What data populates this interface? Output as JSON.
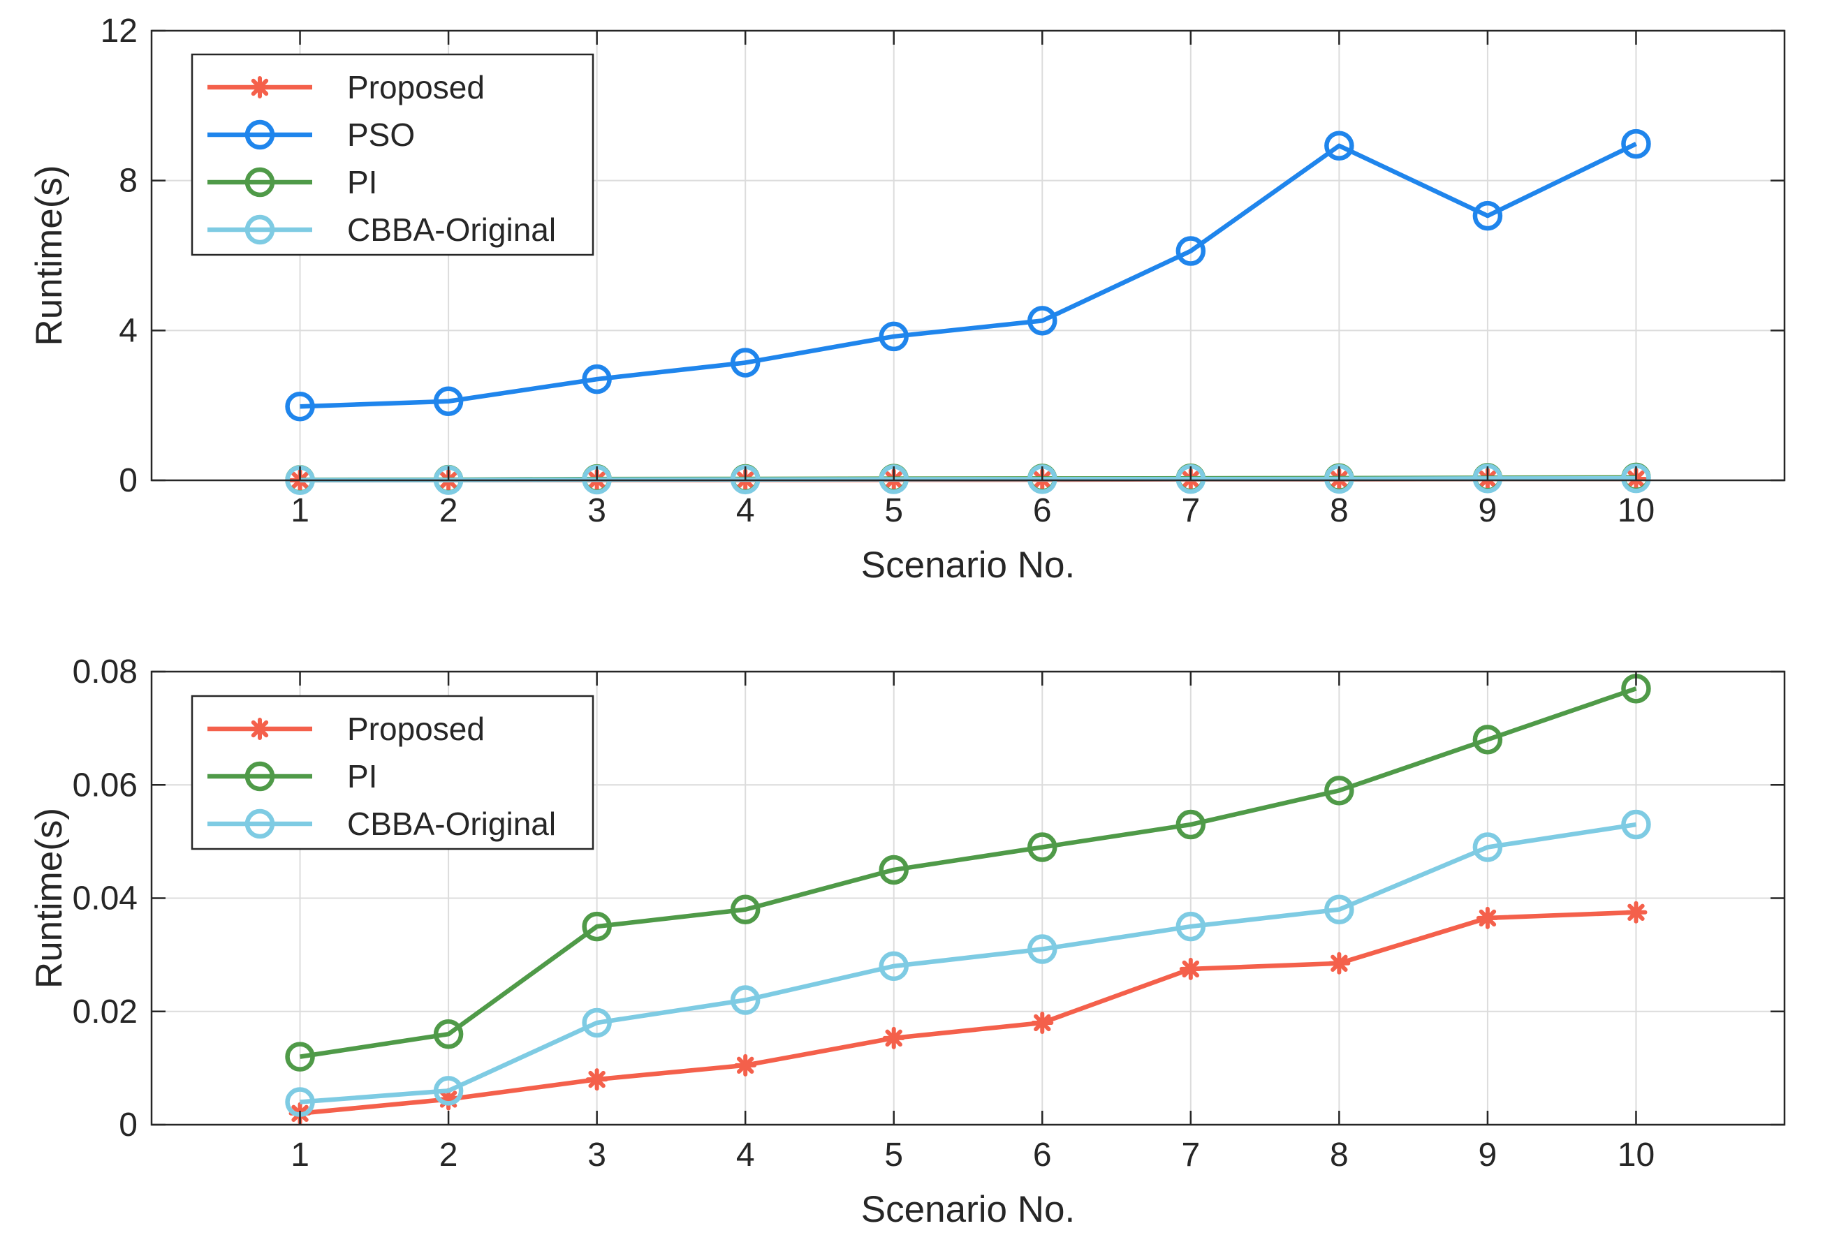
{
  "chart_data": [
    {
      "type": "line",
      "title": "",
      "xlabel": "Scenario No.",
      "ylabel": "Runtime(s)",
      "categories": [
        1,
        2,
        3,
        4,
        5,
        6,
        7,
        8,
        9,
        10
      ],
      "xlim": [
        0,
        11
      ],
      "ylim": [
        0,
        12
      ],
      "xticks": [
        "1",
        "2",
        "3",
        "4",
        "5",
        "6",
        "7",
        "8",
        "9",
        "10"
      ],
      "yticks": [
        "0",
        "4",
        "8",
        "12"
      ],
      "grid": true,
      "legend_position": "top-left",
      "series": [
        {
          "name": "Proposed",
          "color": "#F4604B",
          "marker": "asterisk",
          "values": [
            0.002,
            0.0045,
            0.008,
            0.0105,
            0.0153,
            0.018,
            0.0275,
            0.0285,
            0.0365,
            0.0375
          ]
        },
        {
          "name": "PSO",
          "color": "#1F85EC",
          "marker": "circle",
          "values": [
            1.97,
            2.11,
            2.7,
            3.14,
            3.84,
            4.26,
            6.12,
            8.93,
            7.06,
            8.98
          ]
        },
        {
          "name": "PI",
          "color": "#4F9A48",
          "marker": "circle",
          "values": [
            0.012,
            0.016,
            0.035,
            0.038,
            0.045,
            0.049,
            0.053,
            0.059,
            0.068,
            0.077
          ]
        },
        {
          "name": "CBBA-Original",
          "color": "#7ECBE3",
          "marker": "circle",
          "values": [
            0.004,
            0.006,
            0.018,
            0.022,
            0.028,
            0.031,
            0.035,
            0.038,
            0.049,
            0.053
          ]
        }
      ]
    },
    {
      "type": "line",
      "title": "",
      "xlabel": "Scenario No.",
      "ylabel": "Runtime(s)",
      "categories": [
        1,
        2,
        3,
        4,
        5,
        6,
        7,
        8,
        9,
        10
      ],
      "xlim": [
        0,
        11
      ],
      "ylim": [
        0,
        0.08
      ],
      "xticks": [
        "1",
        "2",
        "3",
        "4",
        "5",
        "6",
        "7",
        "8",
        "9",
        "10"
      ],
      "yticks": [
        "0",
        "0.02",
        "0.04",
        "0.06",
        "0.08"
      ],
      "grid": true,
      "legend_position": "top-left",
      "series": [
        {
          "name": "Proposed",
          "color": "#F4604B",
          "marker": "asterisk",
          "values": [
            0.002,
            0.0045,
            0.008,
            0.0105,
            0.0153,
            0.018,
            0.0275,
            0.0285,
            0.0365,
            0.0375
          ]
        },
        {
          "name": "PI",
          "color": "#4F9A48",
          "marker": "circle",
          "values": [
            0.012,
            0.016,
            0.035,
            0.038,
            0.045,
            0.049,
            0.053,
            0.059,
            0.068,
            0.077
          ]
        },
        {
          "name": "CBBA-Original",
          "color": "#7ECBE3",
          "marker": "circle",
          "values": [
            0.004,
            0.006,
            0.018,
            0.022,
            0.028,
            0.031,
            0.035,
            0.038,
            0.049,
            0.053
          ]
        }
      ]
    }
  ]
}
